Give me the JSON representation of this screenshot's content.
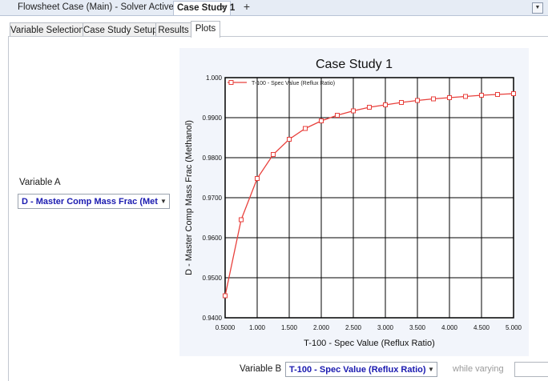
{
  "doc_tabs": [
    {
      "label": "Flowsheet Case (Main) - Solver Active",
      "close": "✕"
    },
    {
      "label": "Case Study 1",
      "close": "✕"
    }
  ],
  "add_tab": "+",
  "sub_tabs": [
    "Variable Selection",
    "Case Study Setup",
    "Results",
    "Plots"
  ],
  "active_sub_tab": "Plots",
  "variable_a": {
    "label": "Variable A",
    "value": "D - Master Comp Mass Frac (Metha"
  },
  "variable_b": {
    "label": "Variable B",
    "value": "T-100 - Spec Value (Reflux Ratio)"
  },
  "while_varying": {
    "label": "while varying",
    "value": ""
  },
  "chart_data": {
    "type": "line",
    "title": "Case Study 1",
    "xlabel": "T-100 - Spec Value (Reflux Ratio)",
    "ylabel": "D - Master Comp Mass Frac (Methanol)",
    "xlim": [
      0.5,
      5.0
    ],
    "ylim": [
      0.94,
      1.0
    ],
    "x_ticks": [
      "0.5000",
      "1.000",
      "1.500",
      "2.000",
      "2.500",
      "3.000",
      "3.500",
      "4.000",
      "4.500",
      "5.000"
    ],
    "y_ticks": [
      "0.9400",
      "0.9500",
      "0.9600",
      "0.9700",
      "0.9800",
      "0.9900",
      "1.000"
    ],
    "grid": true,
    "legend_position": "top-left",
    "series": [
      {
        "name": "T-100 - Spec Value (Reflux Ratio)",
        "color": "#e8403c",
        "x": [
          0.5,
          0.75,
          1.0,
          1.25,
          1.5,
          1.75,
          2.0,
          2.25,
          2.5,
          2.75,
          3.0,
          3.25,
          3.5,
          3.75,
          4.0,
          4.25,
          4.5,
          4.75,
          5.0
        ],
        "y": [
          0.9455,
          0.9645,
          0.9748,
          0.9808,
          0.9846,
          0.9873,
          0.9892,
          0.9906,
          0.9917,
          0.9926,
          0.9932,
          0.9938,
          0.9943,
          0.9947,
          0.995,
          0.9953,
          0.9956,
          0.9958,
          0.996
        ]
      }
    ]
  }
}
